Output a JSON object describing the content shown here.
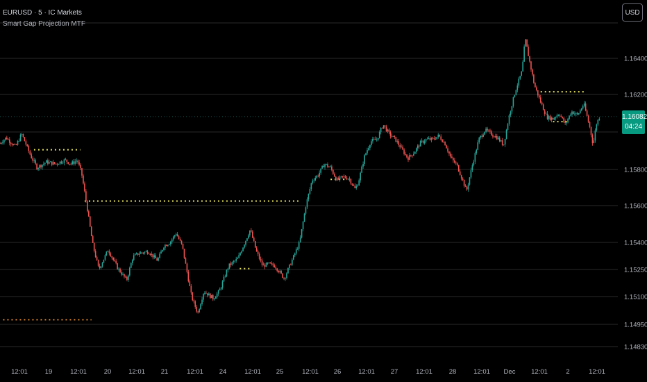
{
  "header": {
    "symbol": "EURUSD · 5 · IC Markets",
    "indicator": "Smart Gap Projection MTF"
  },
  "currency_button": "USD",
  "price_badge": {
    "price": "1.16082",
    "countdown": "04:24"
  },
  "colors": {
    "background": "#000000",
    "grid": "#2a2a2a",
    "up": "#26a69a",
    "down": "#ef5350",
    "gap_line_yellow": "#e7e35e",
    "gap_line_orange": "#e0892e",
    "badge": "#089981"
  },
  "chart_data": {
    "type": "candlestick",
    "y_axis_ticks": [
      "1.16400",
      "1.16200",
      "1.15800",
      "1.15600",
      "1.15400",
      "1.15250",
      "1.15100",
      "1.14950",
      "1.14830"
    ],
    "x_axis_ticks": [
      "12:01",
      "19",
      "12:01",
      "20",
      "12:01",
      "21",
      "12:01",
      "24",
      "12:01",
      "25",
      "12:01",
      "26",
      "12:01",
      "27",
      "12:01",
      "28",
      "12:01",
      "Dec",
      "12:01",
      "2",
      "12:01"
    ],
    "last_price": 1.16082,
    "path_points": [
      [
        0,
        1.1594
      ],
      [
        0.01,
        1.1597
      ],
      [
        0.025,
        1.1592
      ],
      [
        0.035,
        1.1599
      ],
      [
        0.05,
        1.1587
      ],
      [
        0.06,
        1.1581
      ],
      [
        0.075,
        1.1584
      ],
      [
        0.09,
        1.1583
      ],
      [
        0.105,
        1.1585
      ],
      [
        0.115,
        1.1583
      ],
      [
        0.125,
        1.1585
      ],
      [
        0.132,
        1.1578
      ],
      [
        0.14,
        1.1561
      ],
      [
        0.15,
        1.1539
      ],
      [
        0.16,
        1.1525
      ],
      [
        0.175,
        1.1536
      ],
      [
        0.19,
        1.1526
      ],
      [
        0.205,
        1.1519
      ],
      [
        0.215,
        1.1532
      ],
      [
        0.225,
        1.1534
      ],
      [
        0.24,
        1.1535
      ],
      [
        0.255,
        1.153
      ],
      [
        0.265,
        1.1538
      ],
      [
        0.275,
        1.154
      ],
      [
        0.285,
        1.1545
      ],
      [
        0.295,
        1.1538
      ],
      [
        0.31,
        1.151
      ],
      [
        0.32,
        1.1501
      ],
      [
        0.33,
        1.1513
      ],
      [
        0.345,
        1.1509
      ],
      [
        0.355,
        1.1513
      ],
      [
        0.37,
        1.1527
      ],
      [
        0.385,
        1.1531
      ],
      [
        0.395,
        1.1539
      ],
      [
        0.405,
        1.1547
      ],
      [
        0.415,
        1.1535
      ],
      [
        0.425,
        1.1527
      ],
      [
        0.435,
        1.1528
      ],
      [
        0.445,
        1.1527
      ],
      [
        0.46,
        1.152
      ],
      [
        0.475,
        1.1532
      ],
      [
        0.485,
        1.154
      ],
      [
        0.495,
        1.156
      ],
      [
        0.505,
        1.1574
      ],
      [
        0.515,
        1.1577
      ],
      [
        0.525,
        1.1583
      ],
      [
        0.535,
        1.1581
      ],
      [
        0.545,
        1.1574
      ],
      [
        0.555,
        1.1576
      ],
      [
        0.565,
        1.1575
      ],
      [
        0.575,
        1.1569
      ],
      [
        0.58,
        1.1573
      ],
      [
        0.59,
        1.1587
      ],
      [
        0.6,
        1.1595
      ],
      [
        0.61,
        1.1596
      ],
      [
        0.62,
        1.1604
      ],
      [
        0.63,
        1.1599
      ],
      [
        0.64,
        1.1596
      ],
      [
        0.65,
        1.1591
      ],
      [
        0.66,
        1.1586
      ],
      [
        0.67,
        1.1589
      ],
      [
        0.68,
        1.1594
      ],
      [
        0.69,
        1.1596
      ],
      [
        0.7,
        1.1596
      ],
      [
        0.71,
        1.1598
      ],
      [
        0.72,
        1.1594
      ],
      [
        0.73,
        1.1586
      ],
      [
        0.74,
        1.1582
      ],
      [
        0.75,
        1.1573
      ],
      [
        0.755,
        1.1568
      ],
      [
        0.765,
        1.1583
      ],
      [
        0.775,
        1.1596
      ],
      [
        0.785,
        1.1601
      ],
      [
        0.795,
        1.1599
      ],
      [
        0.805,
        1.1597
      ],
      [
        0.815,
        1.1593
      ],
      [
        0.825,
        1.161
      ],
      [
        0.835,
        1.1623
      ],
      [
        0.845,
        1.1633
      ],
      [
        0.85,
        1.1651
      ],
      [
        0.855,
        1.1642
      ],
      [
        0.865,
        1.1625
      ],
      [
        0.875,
        1.1616
      ],
      [
        0.885,
        1.1608
      ],
      [
        0.895,
        1.1607
      ],
      [
        0.905,
        1.161
      ],
      [
        0.915,
        1.1604
      ],
      [
        0.925,
        1.1611
      ],
      [
        0.935,
        1.1609
      ],
      [
        0.945,
        1.1615
      ],
      [
        0.955,
        1.1602
      ],
      [
        0.96,
        1.1593
      ],
      [
        0.965,
        1.1604
      ],
      [
        0.97,
        1.1608
      ]
    ],
    "gap_lines": [
      {
        "from": 0.055,
        "to": 0.13,
        "price": 1.15905,
        "color": "yellow"
      },
      {
        "from": 0.137,
        "to": 0.485,
        "price": 1.15625,
        "color": "yellow"
      },
      {
        "from": 0.535,
        "to": 0.56,
        "price": 1.15745,
        "color": "yellow"
      },
      {
        "from": 0.388,
        "to": 0.405,
        "price": 1.15255,
        "color": "yellow"
      },
      {
        "from": 0.875,
        "to": 0.945,
        "price": 1.16215,
        "color": "yellow"
      },
      {
        "from": 0.895,
        "to": 0.92,
        "price": 1.16055,
        "color": "yellow"
      },
      {
        "from": 0.005,
        "to": 0.148,
        "price": 1.14975,
        "color": "orange"
      }
    ]
  }
}
